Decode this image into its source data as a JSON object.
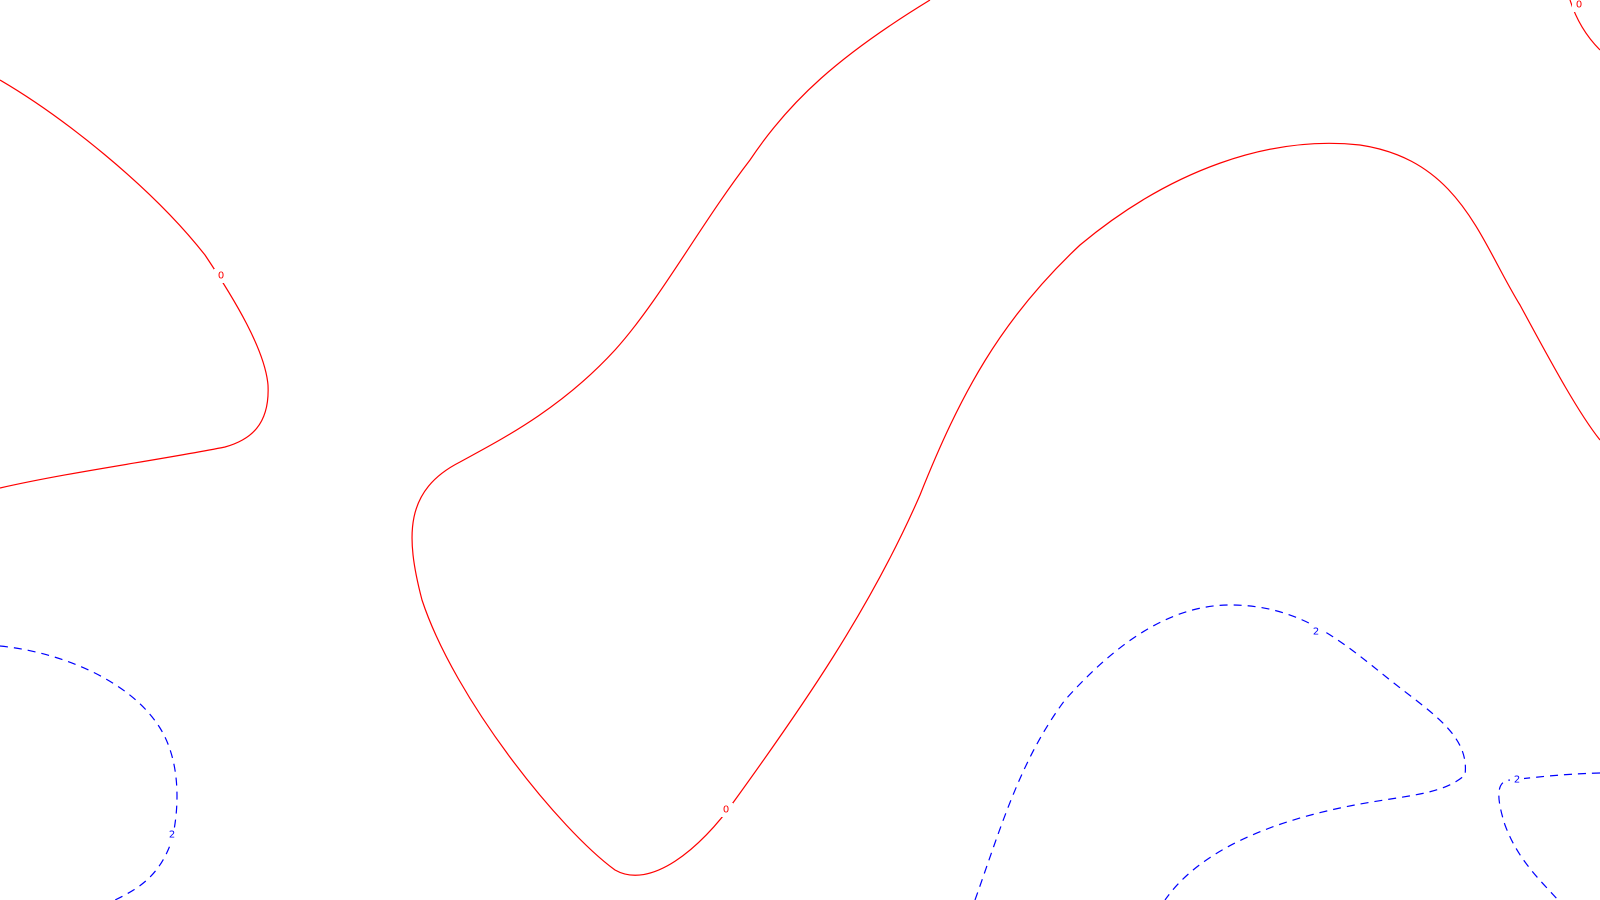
{
  "map": {
    "background": "#ffffff",
    "contours": [
      {
        "id": "zero-left",
        "level": "0",
        "color": "#ff0000",
        "style": "solid"
      },
      {
        "id": "zero-center",
        "level": "0",
        "color": "#ff0000",
        "style": "solid"
      },
      {
        "id": "zero-right",
        "level": "0",
        "color": "#ff0000",
        "style": "solid"
      },
      {
        "id": "zero-top-right",
        "level": "0",
        "color": "#ff0000",
        "style": "solid"
      },
      {
        "id": "two-left",
        "level": "2",
        "color": "#0000ff",
        "style": "dashed"
      },
      {
        "id": "two-bottom-center",
        "level": "2",
        "color": "#0000ff",
        "style": "dashed"
      },
      {
        "id": "two-bottom-right",
        "level": "2",
        "color": "#0000ff",
        "style": "dashed"
      }
    ],
    "labels": {
      "zero_left": "0",
      "zero_center": "0",
      "zero_top_right": "0",
      "two_left": "2",
      "two_bottom_center": "2",
      "two_bottom_right": "2"
    }
  }
}
